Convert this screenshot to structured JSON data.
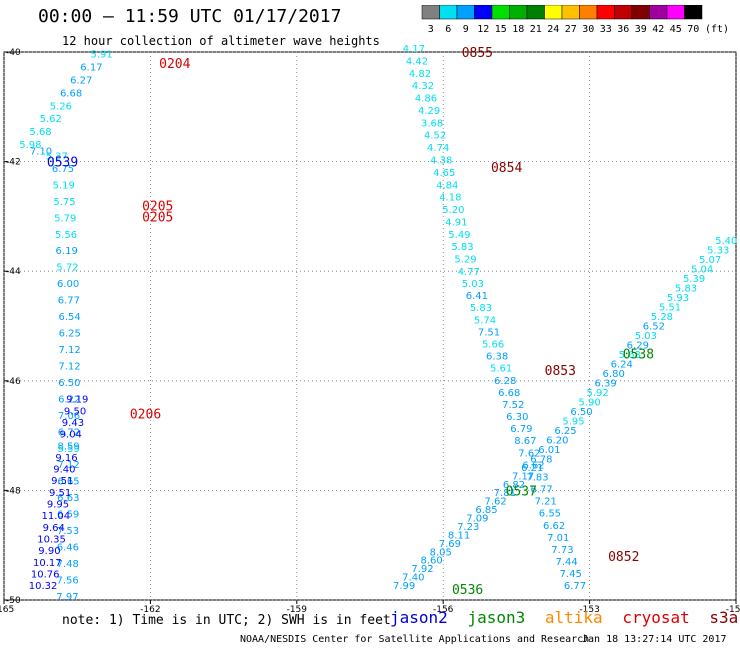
{
  "title": "00:00 — 11:59 UTC 01/17/2017",
  "subtitle": "12 hour collection of altimeter wave heights",
  "footnote": "note: 1) Time is in UTC; 2) SWH is in feet",
  "credit": "NOAA/NESDIS Center for Satellite Applications and Research",
  "timestamp": "Jan 18 13:27:14 UTC 2017",
  "scale_unit": "(ft)",
  "scale": [
    {
      "label": "3",
      "color": "#808080"
    },
    {
      "label": "6",
      "color": "#00e0f0"
    },
    {
      "label": "9",
      "color": "#00a0ff"
    },
    {
      "label": "12",
      "color": "#0000ff"
    },
    {
      "label": "15",
      "color": "#00e000"
    },
    {
      "label": "18",
      "color": "#00b000"
    },
    {
      "label": "21",
      "color": "#008000"
    },
    {
      "label": "24",
      "color": "#ffff00"
    },
    {
      "label": "27",
      "color": "#ffc000"
    },
    {
      "label": "30",
      "color": "#ff8000"
    },
    {
      "label": "33",
      "color": "#ff0000"
    },
    {
      "label": "36",
      "color": "#c00000"
    },
    {
      "label": "39",
      "color": "#800000"
    },
    {
      "label": "42",
      "color": "#a000a0"
    },
    {
      "label": "45",
      "color": "#ff00ff"
    },
    {
      "label": "70",
      "color": "#000000"
    }
  ],
  "legend": [
    {
      "name": "jason2",
      "color": "#0000dd"
    },
    {
      "name": "jason3",
      "color": "#008800"
    },
    {
      "name": "altika",
      "color": "#ff8800"
    },
    {
      "name": "cryosat",
      "color": "#dd0000"
    },
    {
      "name": "s3a",
      "color": "#880000"
    }
  ],
  "chart_data": {
    "type": "scatter",
    "title": "00:00 — 11:59 UTC 01/17/2017",
    "subtitle": "12 hour collection of altimeter wave heights",
    "xlabel": "",
    "ylabel": "",
    "xlim": [
      -165,
      -150
    ],
    "ylim": [
      -50,
      -40
    ],
    "grid": true,
    "x_ticks": [
      -165,
      -162,
      -159,
      -156,
      -153,
      -150
    ],
    "y_ticks": [
      -40,
      -42,
      -44,
      -46,
      -48,
      -50
    ],
    "series": [
      {
        "name": "cryosat",
        "color": "#dd0000",
        "track": [
          [
            -163.0,
            -40.1
          ],
          [
            -164.5,
            -41.8
          ],
          [
            -163.8,
            -42.0
          ],
          [
            -163.65,
            -45.0
          ],
          [
            -163.7,
            -50.0
          ]
        ],
        "timestamps": [
          {
            "label": "0204",
            "lon": -161.5,
            "lat": -40.2
          },
          {
            "label": "0205",
            "lon": -161.85,
            "lat": -42.8
          },
          {
            "label": "0205",
            "lon": -161.85,
            "lat": -43.0
          },
          {
            "label": "0206",
            "lon": -162.1,
            "lat": -46.6
          }
        ],
        "values": [
          "5.91",
          "6.17",
          "6.27",
          "6.68",
          "5.26",
          "5.62",
          "5.68",
          "5.98",
          "7.10",
          "5.37",
          "6.75",
          "5.19",
          "5.75",
          "5.79",
          "5.56",
          "6.19",
          "5.72",
          "6.00",
          "6.77",
          "6.54",
          "6.25",
          "7.12",
          "7.12",
          "6.50",
          "6.22",
          "7.06",
          "6.72",
          "5.59",
          "7.12",
          "6.65",
          "6.63",
          "6.59",
          "7.53",
          "6.46",
          "7.48",
          "7.56",
          "7.97"
        ]
      },
      {
        "name": "jason2",
        "color": "#0000dd",
        "track": [
          [
            -163.5,
            -46.4
          ],
          [
            -164.2,
            -49.8
          ]
        ],
        "timestamps": [
          {
            "label": "0539",
            "lon": -163.8,
            "lat": -42.0
          }
        ],
        "values": [
          "9.19",
          "9.50",
          "9.43",
          "9.04",
          "8.59",
          "9.16",
          "9.40",
          "9.51",
          "9.51",
          "9.95",
          "11.04",
          "9.64",
          "10.35",
          "9.90",
          "10.17",
          "10.76",
          "10.32"
        ]
      },
      {
        "name": "s3a",
        "color": "#880000",
        "track": [
          [
            -156.6,
            -40.0
          ],
          [
            -155.5,
            -44.0
          ],
          [
            -154.0,
            -48.0
          ],
          [
            -153.3,
            -49.8
          ]
        ],
        "timestamps": [
          {
            "label": "0855",
            "lon": -155.3,
            "lat": -40.0
          },
          {
            "label": "0854",
            "lon": -154.7,
            "lat": -42.1
          },
          {
            "label": "0853",
            "lon": -153.6,
            "lat": -45.8
          },
          {
            "label": "0852",
            "lon": -152.3,
            "lat": -49.2
          }
        ],
        "values": [
          "4.17",
          "4.42",
          "4.82",
          "4.32",
          "4.86",
          "4.29",
          "3.68",
          "4.52",
          "4.74",
          "4.38",
          "4.65",
          "4.84",
          "4.18",
          "5.20",
          "4.91",
          "5.49",
          "5.83",
          "5.29",
          "4.77",
          "5.03",
          "6.41",
          "5.83",
          "5.74",
          "7.51",
          "5.66",
          "6.38",
          "5.61",
          "6.28",
          "6.68",
          "7.52",
          "6.30",
          "6.79",
          "8.67",
          "7.62",
          "6.62",
          "7.83",
          "6.77",
          "7.21",
          "6.55",
          "6.62",
          "7.01",
          "7.73",
          "7.44",
          "7.45",
          "6.77"
        ]
      },
      {
        "name": "jason3",
        "color": "#008800",
        "track": [
          [
            -156.8,
            -49.8
          ],
          [
            -154.0,
            -47.5
          ],
          [
            -150.2,
            -43.5
          ]
        ],
        "timestamps": [
          {
            "label": "0538",
            "lon": -152.0,
            "lat": -45.5
          },
          {
            "label": "0537",
            "lon": -154.4,
            "lat": -48.0
          },
          {
            "label": "0536",
            "lon": -155.5,
            "lat": -49.8
          }
        ],
        "values": [
          "7.99",
          "7.40",
          "7.92",
          "8.60",
          "8.05",
          "7.69",
          "8.11",
          "7.23",
          "7.09",
          "6.85",
          "7.62",
          "7.81",
          "6.82",
          "7.17",
          "6.21",
          "6.78",
          "6.01",
          "6.20",
          "6.25",
          "5.95",
          "6.50",
          "5.90",
          "5.92",
          "6.39",
          "6.80",
          "6.24",
          "5.68",
          "6.29",
          "5.03",
          "6.52",
          "5.28",
          "5.51",
          "5.93",
          "5.83",
          "5.39",
          "5.04",
          "5.07",
          "5.33",
          "5.40"
        ]
      }
    ]
  }
}
